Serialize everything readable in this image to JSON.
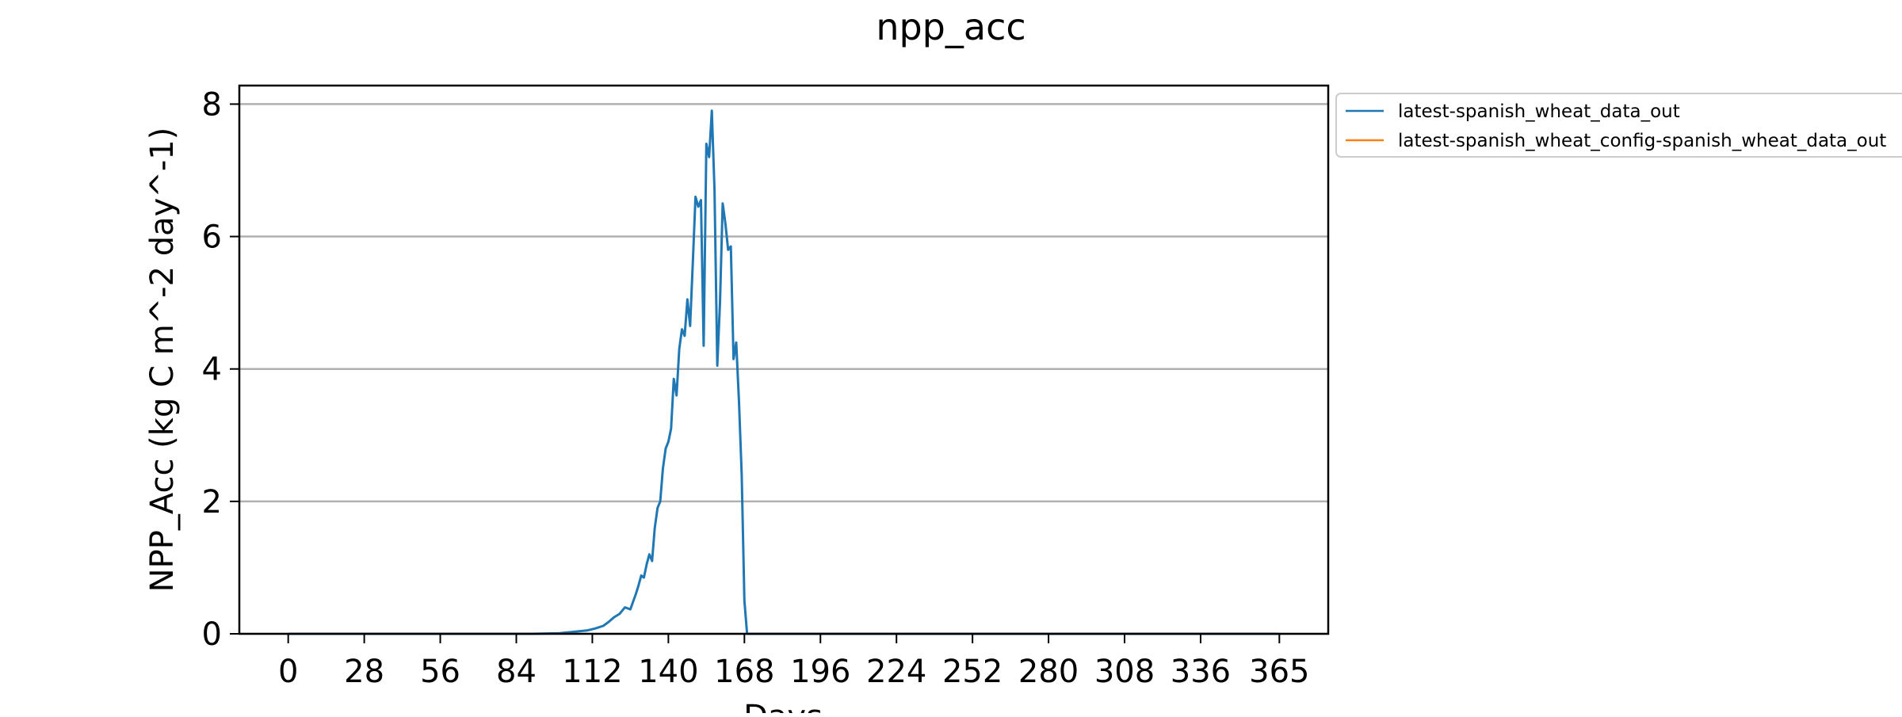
{
  "chart_data": {
    "type": "line",
    "title": "npp_acc",
    "xlabel": "Days",
    "ylabel": "NPP_Acc (kg C m^-2 day^-1)",
    "xlim": [
      -18,
      383
    ],
    "ylim": [
      0,
      8.28
    ],
    "x_ticks": [
      0,
      28,
      56,
      84,
      112,
      140,
      168,
      196,
      224,
      252,
      280,
      308,
      336,
      365
    ],
    "y_ticks": [
      0,
      2,
      4,
      6,
      8
    ],
    "grid": "horizontal",
    "legend_position": "outside-top-right",
    "series": [
      {
        "name": "latest-spanish_wheat_data_out",
        "color": "#1f77b4",
        "x": [
          0,
          90,
          100,
          105,
          110,
          113,
          116,
          118,
          120,
          122,
          124,
          126,
          128,
          129,
          130,
          131,
          132,
          133,
          134,
          135,
          136,
          137,
          138,
          139,
          140,
          141,
          142,
          143,
          144,
          145,
          146,
          147,
          148,
          149,
          150,
          151,
          152,
          153,
          154,
          155,
          156,
          157,
          158,
          159,
          160,
          161,
          162,
          163,
          164,
          165,
          166,
          167,
          168,
          169,
          170,
          171,
          172,
          173,
          365
        ],
        "y": [
          0,
          0,
          0.01,
          0.03,
          0.05,
          0.08,
          0.12,
          0.18,
          0.25,
          0.3,
          0.4,
          0.37,
          0.6,
          0.73,
          0.88,
          0.85,
          1.05,
          1.2,
          1.1,
          1.6,
          1.9,
          2.0,
          2.5,
          2.8,
          2.9,
          3.1,
          3.85,
          3.6,
          4.3,
          4.6,
          4.5,
          5.05,
          4.65,
          5.6,
          6.6,
          6.45,
          6.55,
          4.35,
          7.4,
          7.2,
          7.9,
          6.7,
          4.05,
          5.0,
          6.5,
          6.2,
          5.8,
          5.85,
          4.15,
          4.4,
          3.5,
          2.4,
          0.5,
          0,
          0,
          0,
          0,
          0,
          0
        ]
      },
      {
        "name": "latest-spanish_wheat_config-spanish_wheat_data_out",
        "color": "#ff7f0e",
        "x": [],
        "y": []
      }
    ]
  }
}
